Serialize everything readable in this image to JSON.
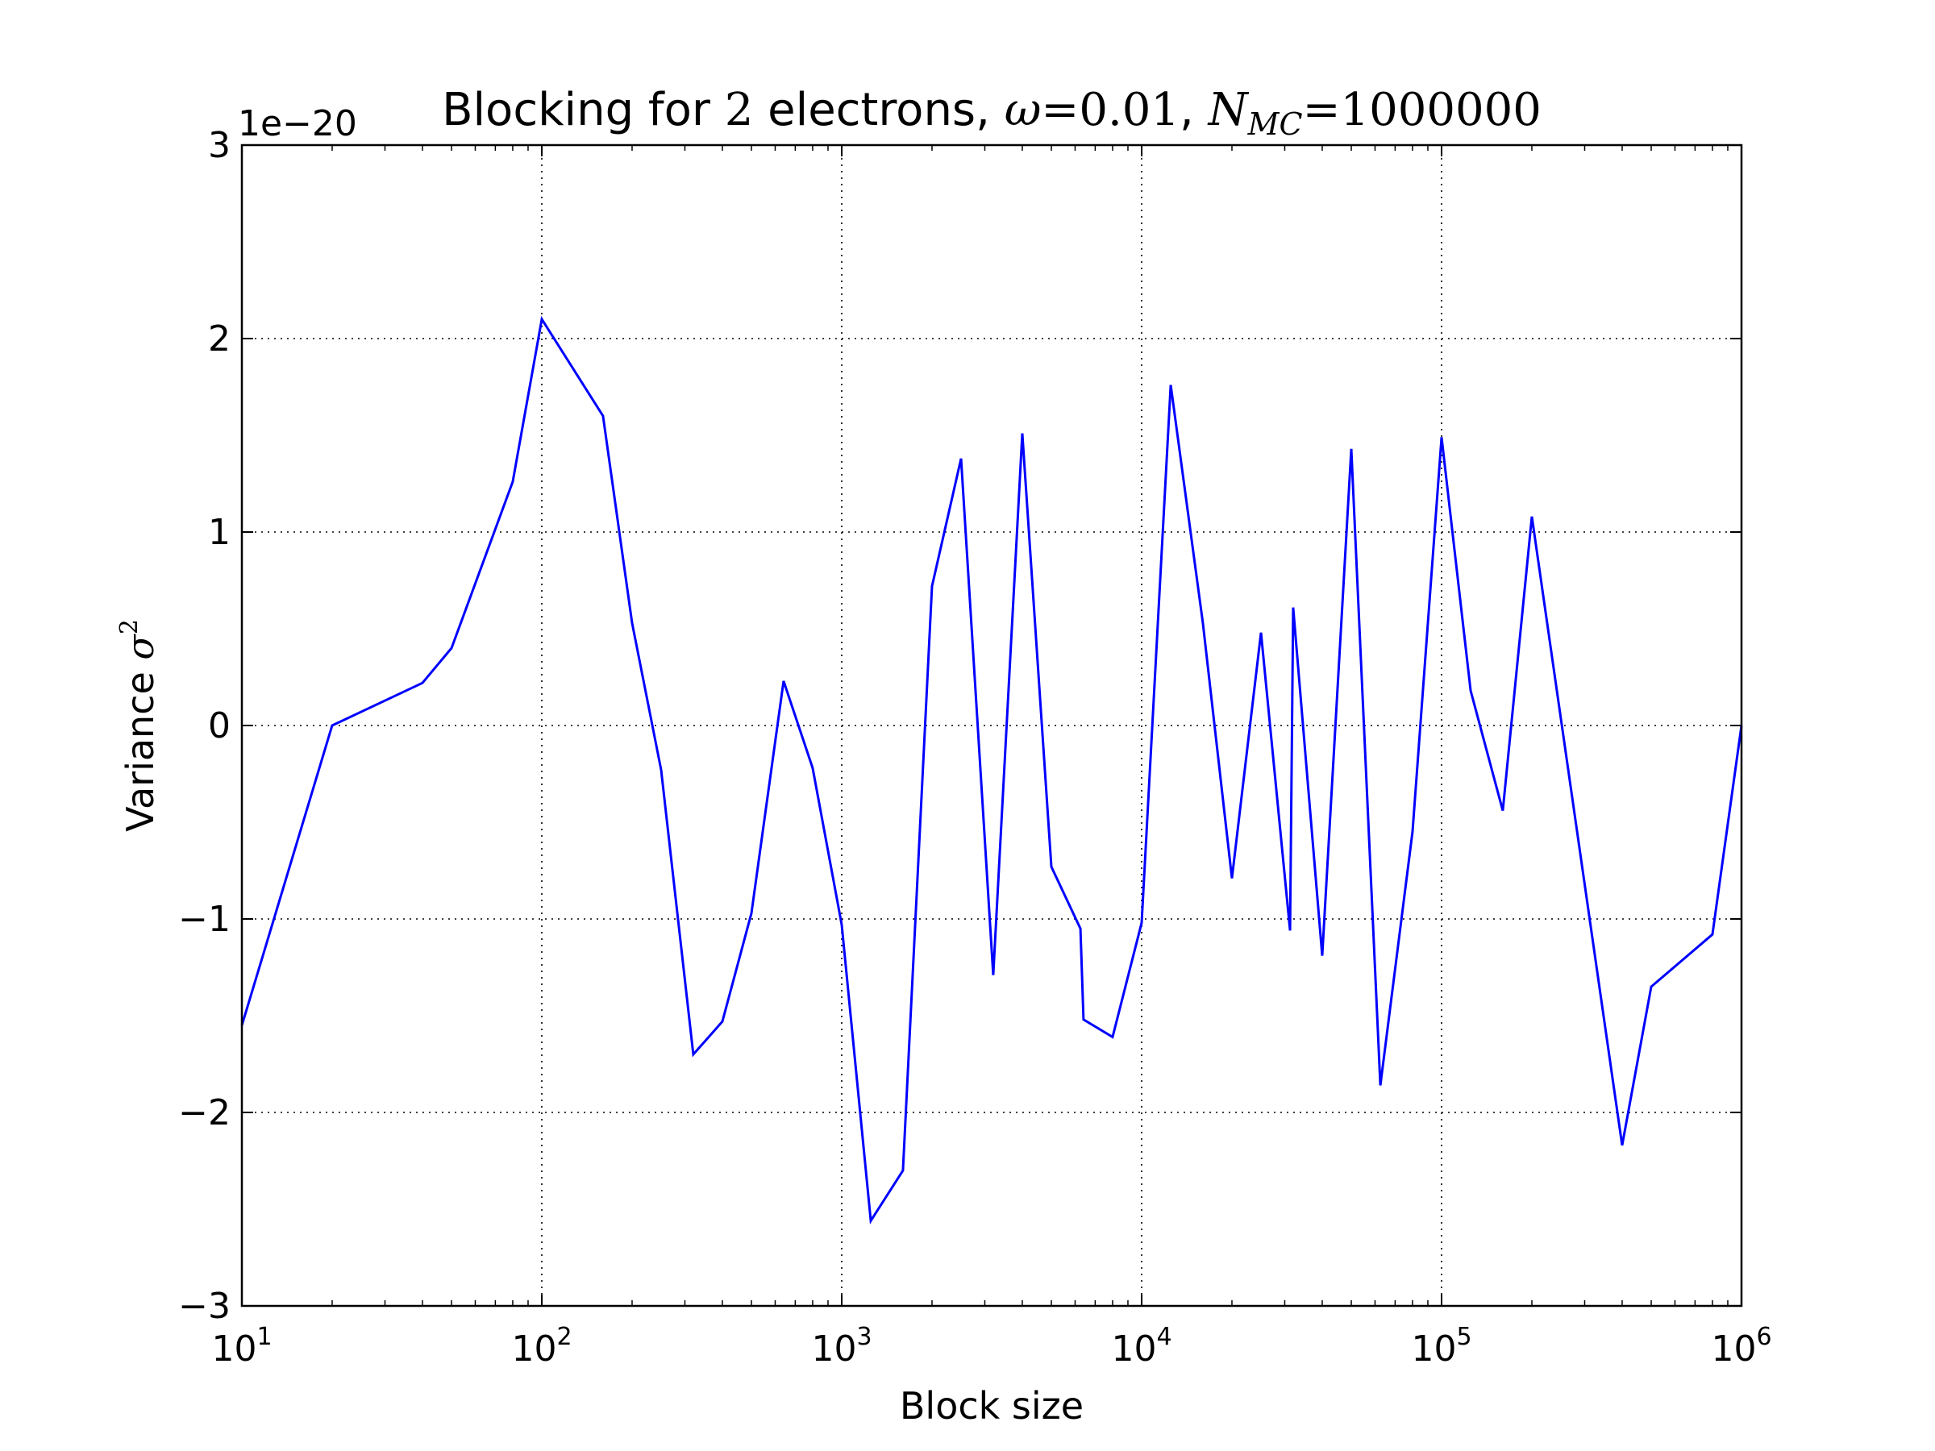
{
  "chart_data": {
    "type": "line",
    "title": {
      "prefix": "Blocking for ",
      "n": "2",
      "middle": " electrons, ",
      "omega_symbol": "ω",
      "omega_eq": "=0.01",
      "sep": ", ",
      "n_symbol": "N",
      "n_sub": "MC",
      "n_eq": "=1000000"
    },
    "xlabel": "Block size",
    "ylabel": {
      "text": "Variance ",
      "symbol": "σ",
      "sup": "2"
    },
    "x_scale": "log",
    "xlim": [
      10,
      1000000
    ],
    "ylim": [
      -3,
      3
    ],
    "y_offset_label": "1e−20",
    "x_ticks": [
      {
        "value": 10,
        "base": "10",
        "exp": "1"
      },
      {
        "value": 100,
        "base": "10",
        "exp": "2"
      },
      {
        "value": 1000,
        "base": "10",
        "exp": "3"
      },
      {
        "value": 10000,
        "base": "10",
        "exp": "4"
      },
      {
        "value": 100000,
        "base": "10",
        "exp": "5"
      },
      {
        "value": 1000000,
        "base": "10",
        "exp": "6"
      }
    ],
    "y_ticks": [
      {
        "value": -3,
        "label": "−3"
      },
      {
        "value": -2,
        "label": "−2"
      },
      {
        "value": -1,
        "label": "−1"
      },
      {
        "value": 0,
        "label": "0"
      },
      {
        "value": 1,
        "label": "1"
      },
      {
        "value": 2,
        "label": "2"
      },
      {
        "value": 3,
        "label": "3"
      }
    ],
    "grid": true,
    "series": [
      {
        "color": "#0000ff",
        "x": [
          10,
          20,
          40,
          50,
          80,
          100,
          160,
          200,
          250,
          320,
          400,
          500,
          640,
          800,
          1000,
          1250,
          1600,
          2000,
          2500,
          3200,
          4000,
          5000,
          6250,
          6400,
          8000,
          10000,
          12500,
          16000,
          20000,
          25000,
          31250,
          32000,
          40000,
          50000,
          62500,
          80000,
          100000,
          125000,
          160000,
          200000,
          400000,
          500000,
          800000,
          1000000
        ],
        "values": [
          -1.55,
          0.0,
          0.22,
          0.4,
          1.26,
          2.1,
          1.6,
          0.53,
          -0.23,
          -1.7,
          -1.53,
          -0.97,
          0.23,
          -0.22,
          -1.03,
          -2.56,
          -2.3,
          0.72,
          1.38,
          -1.29,
          1.51,
          -0.73,
          -1.05,
          -1.52,
          -1.61,
          -1.02,
          1.76,
          0.53,
          -0.79,
          0.48,
          -1.06,
          0.61,
          -1.19,
          1.43,
          -1.86,
          -0.55,
          1.49,
          0.18,
          -0.44,
          1.08,
          -2.17,
          -1.35,
          -1.08,
          0.0
        ]
      }
    ]
  }
}
